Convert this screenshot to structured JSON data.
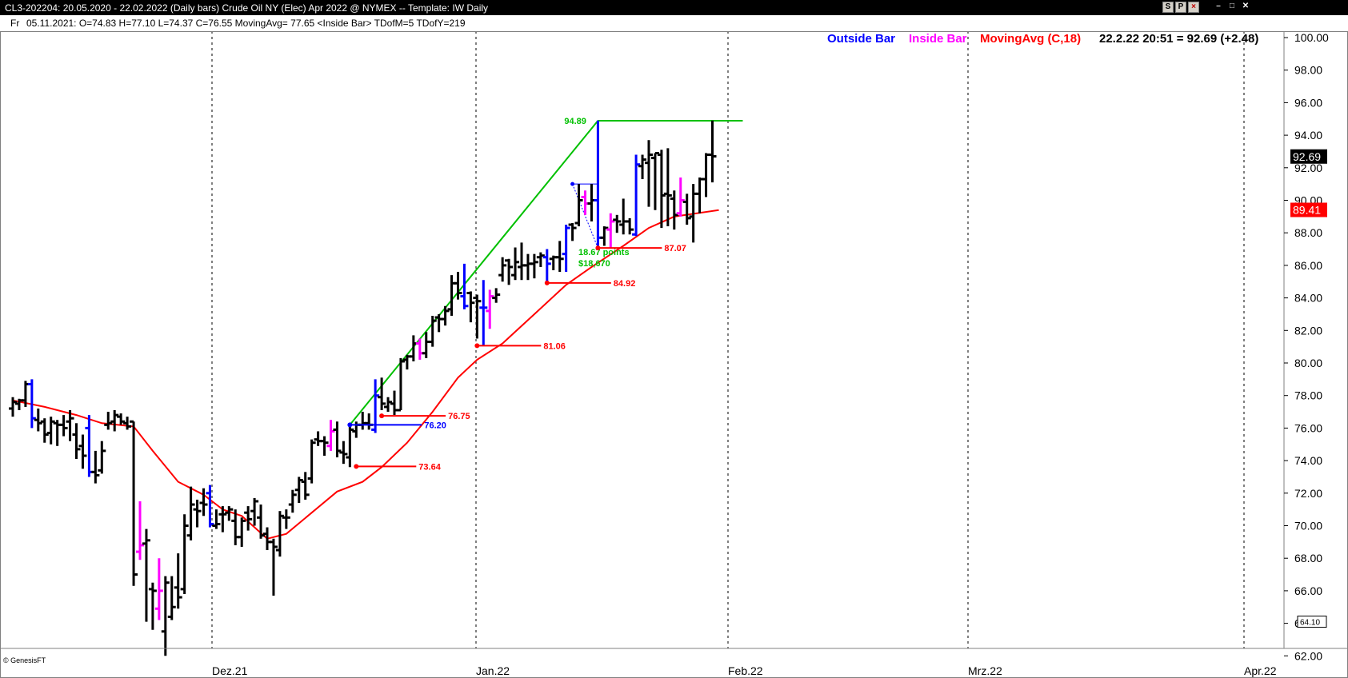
{
  "window": {
    "title": "CL3-202204:  20.05.2020 - 22.02.2022  (Daily bars)   Crude Oil NY (Elec) Apr 2022 @ NYMEX  --  Template: IW Daily",
    "buttons": [
      "S",
      "P",
      "×"
    ]
  },
  "infobar": {
    "day": "Fr",
    "text": "05.11.2021:  O=74.83  H=77.10  L=74.37  C=76.55  MovingAvg= 77.65  <Inside Bar>  TDofM=5  TDofY=219"
  },
  "legend": {
    "outside_label": "Outside Bar",
    "inside_label": "Inside Bar",
    "ma_label": "MovingAvg (C,18)",
    "last_quote": "22.2.22 20:51 = 92.69 (+2.48)"
  },
  "colors": {
    "normal_bar": "#000000",
    "outside_bar": "#0000ff",
    "inside_bar": "#ff00ff",
    "moving_avg": "#ff0000",
    "trend_line": "#00c000",
    "price_tag_bg": "#000000",
    "ma_tag_bg": "#ff0000"
  },
  "watermark": "© GenesisFT",
  "chart_data": {
    "type": "ohlc",
    "y_axis": {
      "min": 61,
      "max": 101,
      "ticks": [
        "62.00",
        "64.00",
        "66.00",
        "68.00",
        "70.00",
        "72.00",
        "74.00",
        "76.00",
        "78.00",
        "80.00",
        "82.00",
        "84.00",
        "86.00",
        "88.00",
        "90.00",
        "92.00",
        "94.00",
        "96.00",
        "98.00",
        "100.00"
      ],
      "position": "right"
    },
    "x_axis": {
      "labels": [
        "Dez.21",
        "Jan.22",
        "Feb.22",
        "Mrz.22",
        "Apr.22"
      ]
    },
    "price_tag": "92.69",
    "ma_tag": "89.41",
    "bottom_tag": "64.10",
    "annotations": {
      "high_label": "94.89",
      "gain_points": "18.67 points",
      "gain_value": "$18,670",
      "levels": [
        "76.20",
        "73.64",
        "76.75",
        "81.06",
        "84.92",
        "87.07"
      ]
    },
    "bars": [
      {
        "o": 77.2,
        "h": 77.9,
        "l": 76.7,
        "c": 77.6,
        "t": "n"
      },
      {
        "o": 77.5,
        "h": 77.8,
        "l": 77.1,
        "c": 77.7,
        "t": "n"
      },
      {
        "o": 77.7,
        "h": 78.9,
        "l": 77.3,
        "c": 78.7,
        "t": "n"
      },
      {
        "o": 78.7,
        "h": 79.0,
        "l": 76.0,
        "c": 76.6,
        "t": "o"
      },
      {
        "o": 76.5,
        "h": 77.2,
        "l": 75.8,
        "c": 76.3,
        "t": "n"
      },
      {
        "o": 76.4,
        "h": 76.6,
        "l": 75.1,
        "c": 75.6,
        "t": "n"
      },
      {
        "o": 75.7,
        "h": 76.7,
        "l": 75.0,
        "c": 76.4,
        "t": "n"
      },
      {
        "o": 76.3,
        "h": 76.5,
        "l": 74.9,
        "c": 76.2,
        "t": "n"
      },
      {
        "o": 76.2,
        "h": 76.8,
        "l": 75.5,
        "c": 76.0,
        "t": "n"
      },
      {
        "o": 76.4,
        "h": 77.1,
        "l": 75.2,
        "c": 76.6,
        "t": "n"
      },
      {
        "o": 75.6,
        "h": 76.3,
        "l": 74.1,
        "c": 74.7,
        "t": "n"
      },
      {
        "o": 74.9,
        "h": 75.6,
        "l": 73.5,
        "c": 74.3,
        "t": "n"
      },
      {
        "o": 76.0,
        "h": 76.8,
        "l": 73.0,
        "c": 73.3,
        "t": "o"
      },
      {
        "o": 73.3,
        "h": 74.6,
        "l": 72.6,
        "c": 73.1,
        "t": "n"
      },
      {
        "o": 73.4,
        "h": 75.2,
        "l": 73.2,
        "c": 74.6,
        "t": "n"
      },
      {
        "o": 76.2,
        "h": 77.0,
        "l": 75.9,
        "c": 76.3,
        "t": "n"
      },
      {
        "o": 76.4,
        "h": 77.1,
        "l": 75.8,
        "c": 76.8,
        "t": "n"
      },
      {
        "o": 76.7,
        "h": 76.9,
        "l": 76.2,
        "c": 76.4,
        "t": "n"
      },
      {
        "o": 76.3,
        "h": 76.7,
        "l": 75.9,
        "c": 76.1,
        "t": "n"
      },
      {
        "o": 76.4,
        "h": 76.4,
        "l": 66.3,
        "c": 67.0,
        "t": "n"
      },
      {
        "o": 68.4,
        "h": 71.5,
        "l": 67.9,
        "c": 68.8,
        "t": "i"
      },
      {
        "o": 68.9,
        "h": 69.8,
        "l": 64.1,
        "c": 69.1,
        "t": "n"
      },
      {
        "o": 66.1,
        "h": 66.5,
        "l": 63.6,
        "c": 66.0,
        "t": "n"
      },
      {
        "o": 64.9,
        "h": 68.0,
        "l": 64.2,
        "c": 66.0,
        "t": "i"
      },
      {
        "o": 63.5,
        "h": 66.9,
        "l": 62.0,
        "c": 66.5,
        "t": "n"
      },
      {
        "o": 64.4,
        "h": 66.9,
        "l": 64.2,
        "c": 65.0,
        "t": "n"
      },
      {
        "o": 66.2,
        "h": 68.3,
        "l": 64.9,
        "c": 65.6,
        "t": "n"
      },
      {
        "o": 66.1,
        "h": 70.7,
        "l": 65.8,
        "c": 70.0,
        "t": "n"
      },
      {
        "o": 69.4,
        "h": 72.4,
        "l": 69.1,
        "c": 71.3,
        "t": "n"
      },
      {
        "o": 71.0,
        "h": 71.6,
        "l": 69.9,
        "c": 70.9,
        "t": "n"
      },
      {
        "o": 71.4,
        "h": 72.3,
        "l": 70.6,
        "c": 71.3,
        "t": "n"
      },
      {
        "o": 72.0,
        "h": 72.5,
        "l": 69.9,
        "c": 70.1,
        "t": "o"
      },
      {
        "o": 70.0,
        "h": 71.0,
        "l": 69.8,
        "c": 70.1,
        "t": "n"
      },
      {
        "o": 70.7,
        "h": 71.2,
        "l": 69.6,
        "c": 70.7,
        "t": "n"
      },
      {
        "o": 70.8,
        "h": 71.2,
        "l": 70.3,
        "c": 71.0,
        "t": "n"
      },
      {
        "o": 70.3,
        "h": 71.0,
        "l": 68.8,
        "c": 69.3,
        "t": "n"
      },
      {
        "o": 69.3,
        "h": 70.5,
        "l": 68.7,
        "c": 70.3,
        "t": "n"
      },
      {
        "o": 70.8,
        "h": 71.2,
        "l": 69.7,
        "c": 70.4,
        "t": "n"
      },
      {
        "o": 70.9,
        "h": 71.7,
        "l": 70.0,
        "c": 71.5,
        "t": "n"
      },
      {
        "o": 70.5,
        "h": 71.3,
        "l": 69.2,
        "c": 69.4,
        "t": "n"
      },
      {
        "o": 69.5,
        "h": 69.9,
        "l": 68.5,
        "c": 69.0,
        "t": "n"
      },
      {
        "o": 69.0,
        "h": 69.2,
        "l": 65.7,
        "c": 68.7,
        "t": "n"
      },
      {
        "o": 68.5,
        "h": 70.9,
        "l": 68.1,
        "c": 70.6,
        "t": "n"
      },
      {
        "o": 70.5,
        "h": 71.0,
        "l": 69.8,
        "c": 70.5,
        "t": "n"
      },
      {
        "o": 71.3,
        "h": 72.2,
        "l": 70.8,
        "c": 71.9,
        "t": "n"
      },
      {
        "o": 72.2,
        "h": 73.0,
        "l": 71.4,
        "c": 72.8,
        "t": "n"
      },
      {
        "o": 72.7,
        "h": 73.3,
        "l": 71.6,
        "c": 71.9,
        "t": "n"
      },
      {
        "o": 72.9,
        "h": 75.3,
        "l": 72.6,
        "c": 75.1,
        "t": "n"
      },
      {
        "o": 75.3,
        "h": 75.8,
        "l": 74.9,
        "c": 75.2,
        "t": "n"
      },
      {
        "o": 75.2,
        "h": 75.5,
        "l": 74.3,
        "c": 75.1,
        "t": "n"
      },
      {
        "o": 74.9,
        "h": 76.5,
        "l": 74.6,
        "c": 75.8,
        "t": "i"
      },
      {
        "o": 75.9,
        "h": 76.4,
        "l": 74.2,
        "c": 74.6,
        "t": "n"
      },
      {
        "o": 74.5,
        "h": 75.2,
        "l": 73.8,
        "c": 74.4,
        "t": "n"
      },
      {
        "o": 74.2,
        "h": 76.1,
        "l": 73.6,
        "c": 75.9,
        "t": "n"
      },
      {
        "o": 75.8,
        "h": 76.4,
        "l": 75.4,
        "c": 76.2,
        "t": "n"
      },
      {
        "o": 76.2,
        "h": 77.0,
        "l": 75.9,
        "c": 76.3,
        "t": "n"
      },
      {
        "o": 76.3,
        "h": 76.9,
        "l": 75.9,
        "c": 76.2,
        "t": "n"
      },
      {
        "o": 75.9,
        "h": 79.0,
        "l": 75.7,
        "c": 78.0,
        "t": "o"
      },
      {
        "o": 77.9,
        "h": 79.1,
        "l": 77.1,
        "c": 77.5,
        "t": "n"
      },
      {
        "o": 77.3,
        "h": 77.9,
        "l": 77.0,
        "c": 77.6,
        "t": "n"
      },
      {
        "o": 77.5,
        "h": 78.3,
        "l": 76.8,
        "c": 77.1,
        "t": "n"
      },
      {
        "o": 77.1,
        "h": 80.3,
        "l": 77.1,
        "c": 80.1,
        "t": "n"
      },
      {
        "o": 80.2,
        "h": 80.5,
        "l": 79.6,
        "c": 80.4,
        "t": "n"
      },
      {
        "o": 80.4,
        "h": 81.7,
        "l": 80.1,
        "c": 81.2,
        "t": "n"
      },
      {
        "o": 81.2,
        "h": 81.5,
        "l": 80.2,
        "c": 80.6,
        "t": "i"
      },
      {
        "o": 80.6,
        "h": 81.9,
        "l": 80.3,
        "c": 81.3,
        "t": "n"
      },
      {
        "o": 81.3,
        "h": 82.9,
        "l": 81.0,
        "c": 82.6,
        "t": "n"
      },
      {
        "o": 82.8,
        "h": 83.0,
        "l": 81.9,
        "c": 82.7,
        "t": "n"
      },
      {
        "o": 82.7,
        "h": 83.5,
        "l": 82.3,
        "c": 83.2,
        "t": "n"
      },
      {
        "o": 83.3,
        "h": 85.4,
        "l": 82.9,
        "c": 84.9,
        "t": "n"
      },
      {
        "o": 84.9,
        "h": 85.6,
        "l": 83.9,
        "c": 84.3,
        "t": "n"
      },
      {
        "o": 84.1,
        "h": 86.1,
        "l": 83.3,
        "c": 83.5,
        "t": "o"
      },
      {
        "o": 84.3,
        "h": 84.4,
        "l": 82.5,
        "c": 83.7,
        "t": "n"
      },
      {
        "o": 84.0,
        "h": 84.2,
        "l": 81.5,
        "c": 83.8,
        "t": "n"
      },
      {
        "o": 83.4,
        "h": 85.1,
        "l": 81.1,
        "c": 83.4,
        "t": "o"
      },
      {
        "o": 83.2,
        "h": 84.5,
        "l": 82.1,
        "c": 84.1,
        "t": "i"
      },
      {
        "o": 84.0,
        "h": 84.6,
        "l": 83.7,
        "c": 84.2,
        "t": "n"
      },
      {
        "o": 85.4,
        "h": 86.5,
        "l": 85.0,
        "c": 86.0,
        "t": "n"
      },
      {
        "o": 86.3,
        "h": 86.4,
        "l": 84.8,
        "c": 85.9,
        "t": "n"
      },
      {
        "o": 85.4,
        "h": 87.1,
        "l": 85.1,
        "c": 86.2,
        "t": "n"
      },
      {
        "o": 85.9,
        "h": 87.4,
        "l": 85.1,
        "c": 86.0,
        "t": "n"
      },
      {
        "o": 86.0,
        "h": 86.7,
        "l": 85.1,
        "c": 86.1,
        "t": "n"
      },
      {
        "o": 86.1,
        "h": 86.7,
        "l": 85.2,
        "c": 86.2,
        "t": "n"
      },
      {
        "o": 86.5,
        "h": 86.8,
        "l": 85.9,
        "c": 86.6,
        "t": "n"
      },
      {
        "o": 86.5,
        "h": 87.0,
        "l": 85.0,
        "c": 86.1,
        "t": "o"
      },
      {
        "o": 86.4,
        "h": 86.6,
        "l": 85.7,
        "c": 86.5,
        "t": "n"
      },
      {
        "o": 86.5,
        "h": 87.5,
        "l": 85.6,
        "c": 86.4,
        "t": "n"
      },
      {
        "o": 86.7,
        "h": 88.5,
        "l": 85.6,
        "c": 88.3,
        "t": "o"
      },
      {
        "o": 88.5,
        "h": 88.6,
        "l": 87.5,
        "c": 88.3,
        "t": "n"
      },
      {
        "o": 88.6,
        "h": 91.0,
        "l": 88.4,
        "c": 90.0,
        "t": "n"
      },
      {
        "o": 90.2,
        "h": 90.6,
        "l": 89.1,
        "c": 89.8,
        "t": "i"
      },
      {
        "o": 89.8,
        "h": 91.0,
        "l": 88.7,
        "c": 90.0,
        "t": "n"
      },
      {
        "o": 90.0,
        "h": 94.9,
        "l": 87.1,
        "c": 87.7,
        "t": "o"
      },
      {
        "o": 87.7,
        "h": 88.4,
        "l": 87.2,
        "c": 88.3,
        "t": "n"
      },
      {
        "o": 88.2,
        "h": 89.2,
        "l": 87.1,
        "c": 88.7,
        "t": "i"
      },
      {
        "o": 88.8,
        "h": 89.1,
        "l": 88.0,
        "c": 88.7,
        "t": "n"
      },
      {
        "o": 88.5,
        "h": 90.1,
        "l": 87.9,
        "c": 88.7,
        "t": "n"
      },
      {
        "o": 88.7,
        "h": 88.9,
        "l": 87.9,
        "c": 88.2,
        "t": "n"
      },
      {
        "o": 87.9,
        "h": 92.8,
        "l": 87.8,
        "c": 92.2,
        "t": "o"
      },
      {
        "o": 92.1,
        "h": 92.8,
        "l": 91.3,
        "c": 92.5,
        "t": "n"
      },
      {
        "o": 92.3,
        "h": 93.7,
        "l": 89.6,
        "c": 92.8,
        "t": "n"
      },
      {
        "o": 92.6,
        "h": 92.9,
        "l": 89.4,
        "c": 92.9,
        "t": "n"
      },
      {
        "o": 92.8,
        "h": 93.1,
        "l": 88.3,
        "c": 90.3,
        "t": "n"
      },
      {
        "o": 90.4,
        "h": 93.2,
        "l": 88.4,
        "c": 90.3,
        "t": "n"
      },
      {
        "o": 90.1,
        "h": 90.6,
        "l": 88.2,
        "c": 89.1,
        "t": "n"
      },
      {
        "o": 89.2,
        "h": 91.4,
        "l": 89.0,
        "c": 90.0,
        "t": "i"
      },
      {
        "o": 89.9,
        "h": 90.4,
        "l": 88.5,
        "c": 88.9,
        "t": "n"
      },
      {
        "o": 89.0,
        "h": 91.0,
        "l": 87.4,
        "c": 90.4,
        "t": "n"
      },
      {
        "o": 90.4,
        "h": 91.4,
        "l": 89.2,
        "c": 91.3,
        "t": "n"
      },
      {
        "o": 91.3,
        "h": 92.9,
        "l": 90.2,
        "c": 92.8,
        "t": "n"
      },
      {
        "o": 92.8,
        "h": 94.9,
        "l": 91.1,
        "c": 92.7,
        "t": "n"
      }
    ],
    "moving_avg": [
      {
        "i": 0,
        "v": 77.7
      },
      {
        "i": 5,
        "v": 77.3
      },
      {
        "i": 10,
        "v": 76.8
      },
      {
        "i": 14,
        "v": 76.3
      },
      {
        "i": 19,
        "v": 76.1
      },
      {
        "i": 22,
        "v": 74.6
      },
      {
        "i": 26,
        "v": 72.7
      },
      {
        "i": 30,
        "v": 71.9
      },
      {
        "i": 33,
        "v": 71.0
      },
      {
        "i": 36,
        "v": 70.6
      },
      {
        "i": 40,
        "v": 69.2
      },
      {
        "i": 43,
        "v": 69.5
      },
      {
        "i": 47,
        "v": 70.8
      },
      {
        "i": 51,
        "v": 72.1
      },
      {
        "i": 55,
        "v": 72.7
      },
      {
        "i": 58,
        "v": 73.6
      },
      {
        "i": 62,
        "v": 75.1
      },
      {
        "i": 66,
        "v": 77.0
      },
      {
        "i": 70,
        "v": 79.1
      },
      {
        "i": 73,
        "v": 80.2
      },
      {
        "i": 77,
        "v": 81.2
      },
      {
        "i": 82,
        "v": 83.0
      },
      {
        "i": 87,
        "v": 84.8
      },
      {
        "i": 91,
        "v": 85.9
      },
      {
        "i": 96,
        "v": 87.2
      },
      {
        "i": 100,
        "v": 88.3
      },
      {
        "i": 104,
        "v": 89.0
      },
      {
        "i": 111,
        "v": 89.4
      }
    ]
  }
}
